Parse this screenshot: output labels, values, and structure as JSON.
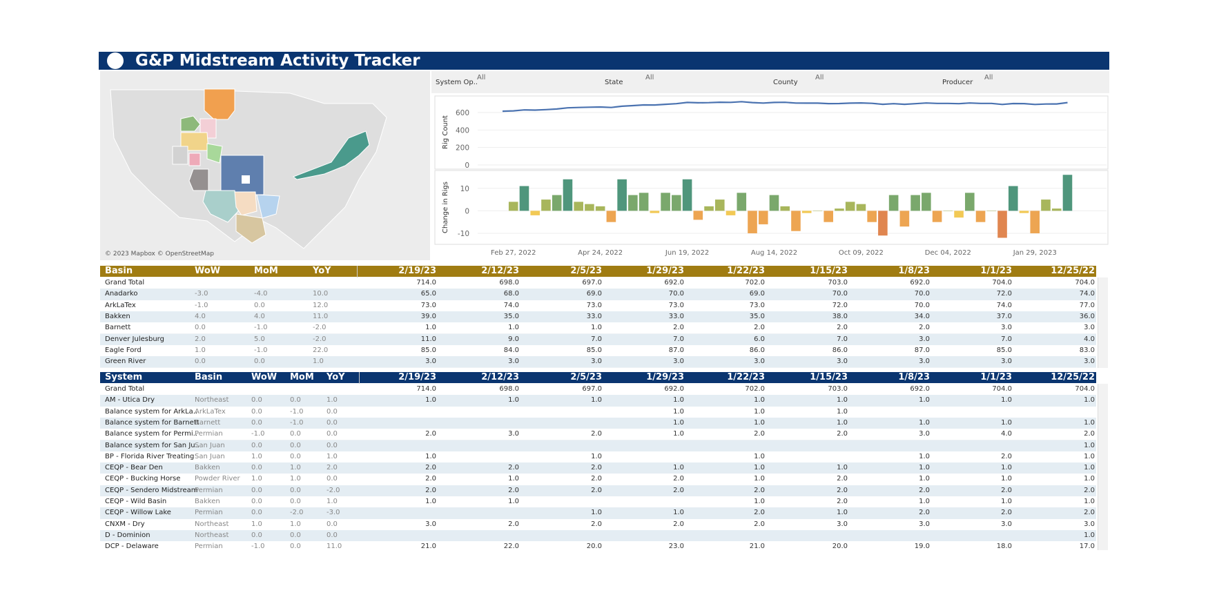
{
  "header": {
    "title": "G&P Midstream Activity Tracker"
  },
  "map": {
    "attribution": "© 2023 Mapbox © OpenStreetMap"
  },
  "filters": [
    {
      "label": "System Op..",
      "value": "All"
    },
    {
      "label": "State",
      "value": "All"
    },
    {
      "label": "County",
      "value": "All"
    },
    {
      "label": "Producer",
      "value": "All"
    }
  ],
  "chart_data": [
    {
      "type": "line",
      "y_label": "Rig Count",
      "color": "#4a72b0",
      "values": [
        615,
        619,
        630,
        628,
        633,
        640,
        654,
        658,
        661,
        663,
        658,
        672,
        679,
        687,
        686,
        694,
        701,
        715,
        711,
        713,
        718,
        716,
        724,
        714,
        708,
        715,
        717,
        708,
        707,
        707,
        702,
        703,
        707,
        710,
        705,
        694,
        701,
        694,
        701,
        709,
        704,
        704,
        701,
        709,
        704,
        704,
        692,
        703,
        702,
        692,
        697,
        698,
        714
      ],
      "ylim": [
        0,
        750
      ],
      "yticks": [
        0,
        200,
        400,
        600
      ],
      "grid": true
    },
    {
      "type": "bar",
      "y_label": "Change in Rigs",
      "categories": [
        null,
        "Feb 27, 2022",
        null,
        null,
        null,
        null,
        null,
        null,
        null,
        "Apr 24, 2022",
        null,
        null,
        null,
        null,
        null,
        null,
        null,
        "Jun 19, 2022",
        null,
        null,
        null,
        null,
        null,
        null,
        null,
        "Aug 14, 2022",
        null,
        null,
        null,
        null,
        null,
        null,
        null,
        "Oct 09, 2022",
        null,
        null,
        null,
        null,
        null,
        null,
        null,
        "Dec 04, 2022",
        null,
        null,
        null,
        null,
        null,
        null,
        null,
        "Jan 29, 2023",
        null,
        null,
        null
      ],
      "values": [
        null,
        4,
        11,
        -2,
        5,
        7,
        14,
        4,
        3,
        2,
        -5,
        14,
        7,
        8,
        -1,
        8,
        7,
        14,
        -4,
        2,
        5,
        -2,
        8,
        -10,
        -6,
        7,
        2,
        -9,
        -1,
        0,
        -5,
        1,
        4,
        3,
        -5,
        -11,
        7,
        -7,
        7,
        8,
        -5,
        0,
        -3,
        8,
        -5,
        0,
        -12,
        11,
        -1,
        -10,
        5,
        1,
        16
      ],
      "color_scale": {
        "thresholds": [
          -10,
          -3,
          0,
          6,
          10
        ],
        "colors": [
          "#e08650",
          "#eda552",
          "#f2c955",
          "#a8b65c",
          "#7aa86c",
          "#4f967c"
        ]
      },
      "ylim": [
        -14,
        17
      ],
      "yticks": [
        -10,
        0,
        10
      ],
      "grid": true
    }
  ],
  "basin_table": {
    "columns": [
      "Basin",
      "WoW",
      "MoM",
      "YoY",
      "2/19/23",
      "2/12/23",
      "2/5/23",
      "1/29/23",
      "1/22/23",
      "1/15/23",
      "1/8/23",
      "1/1/23",
      "12/25/22"
    ],
    "rows": [
      [
        "Grand Total",
        null,
        null,
        null,
        "714.0",
        "698.0",
        "697.0",
        "692.0",
        "702.0",
        "703.0",
        "692.0",
        "704.0",
        "704.0"
      ],
      [
        "Anadarko",
        "-3.0",
        "-4.0",
        "10.0",
        "65.0",
        "68.0",
        "69.0",
        "70.0",
        "69.0",
        "70.0",
        "70.0",
        "72.0",
        "74.0"
      ],
      [
        "ArkLaTex",
        "-1.0",
        "0.0",
        "12.0",
        "73.0",
        "74.0",
        "73.0",
        "73.0",
        "73.0",
        "72.0",
        "70.0",
        "74.0",
        "77.0"
      ],
      [
        "Bakken",
        "4.0",
        "4.0",
        "11.0",
        "39.0",
        "35.0",
        "33.0",
        "33.0",
        "35.0",
        "38.0",
        "34.0",
        "37.0",
        "36.0"
      ],
      [
        "Barnett",
        "0.0",
        "-1.0",
        "-2.0",
        "1.0",
        "1.0",
        "1.0",
        "2.0",
        "2.0",
        "2.0",
        "2.0",
        "3.0",
        "3.0"
      ],
      [
        "Denver Julesburg",
        "2.0",
        "5.0",
        "-2.0",
        "11.0",
        "9.0",
        "7.0",
        "7.0",
        "6.0",
        "7.0",
        "3.0",
        "7.0",
        "4.0"
      ],
      [
        "Eagle Ford",
        "1.0",
        "-1.0",
        "22.0",
        "85.0",
        "84.0",
        "85.0",
        "87.0",
        "86.0",
        "86.0",
        "87.0",
        "85.0",
        "83.0"
      ],
      [
        "Green River",
        "0.0",
        "0.0",
        "1.0",
        "3.0",
        "3.0",
        "3.0",
        "3.0",
        "3.0",
        "3.0",
        "3.0",
        "3.0",
        "3.0"
      ]
    ]
  },
  "system_table": {
    "columns": [
      "System",
      "Basin",
      "WoW",
      "MoM",
      "YoY",
      "2/19/23",
      "2/12/23",
      "2/5/23",
      "1/29/23",
      "1/22/23",
      "1/15/23",
      "1/8/23",
      "1/1/23",
      "12/25/22"
    ],
    "rows": [
      [
        "Grand Total",
        null,
        null,
        null,
        null,
        "714.0",
        "698.0",
        "697.0",
        "692.0",
        "702.0",
        "703.0",
        "692.0",
        "704.0",
        "704.0"
      ],
      [
        "AM - Utica Dry",
        "Northeast",
        "0.0",
        "0.0",
        "1.0",
        "1.0",
        "1.0",
        "1.0",
        "1.0",
        "1.0",
        "1.0",
        "1.0",
        "1.0",
        "1.0"
      ],
      [
        "Balance system for ArkLa..",
        "ArkLaTex",
        "0.0",
        "-1.0",
        "0.0",
        null,
        null,
        null,
        "1.0",
        "1.0",
        "1.0",
        null,
        null,
        null
      ],
      [
        "Balance system for Barnett",
        "Barnett",
        "0.0",
        "-1.0",
        "0.0",
        null,
        null,
        null,
        "1.0",
        "1.0",
        "1.0",
        "1.0",
        "1.0",
        "1.0"
      ],
      [
        "Balance system for Permi..",
        "Permian",
        "-1.0",
        "0.0",
        "0.0",
        "2.0",
        "3.0",
        "2.0",
        "1.0",
        "2.0",
        "2.0",
        "3.0",
        "4.0",
        "2.0"
      ],
      [
        "Balance system for San Ju..",
        "San Juan",
        "0.0",
        "0.0",
        "0.0",
        null,
        null,
        null,
        null,
        null,
        null,
        null,
        null,
        "1.0"
      ],
      [
        "BP - Florida River Treating",
        "San Juan",
        "1.0",
        "0.0",
        "1.0",
        "1.0",
        null,
        "1.0",
        null,
        "1.0",
        null,
        "1.0",
        "2.0",
        "1.0"
      ],
      [
        "CEQP - Bear Den",
        "Bakken",
        "0.0",
        "1.0",
        "2.0",
        "2.0",
        "2.0",
        "2.0",
        "1.0",
        "1.0",
        "1.0",
        "1.0",
        "1.0",
        "1.0"
      ],
      [
        "CEQP - Bucking Horse",
        "Powder River",
        "1.0",
        "1.0",
        "0.0",
        "2.0",
        "1.0",
        "2.0",
        "2.0",
        "1.0",
        "2.0",
        "1.0",
        "1.0",
        "1.0"
      ],
      [
        "CEQP - Sendero Midstream",
        "Permian",
        "0.0",
        "0.0",
        "-2.0",
        "2.0",
        "2.0",
        "2.0",
        "2.0",
        "2.0",
        "2.0",
        "2.0",
        "2.0",
        "2.0"
      ],
      [
        "CEQP - Wild Basin",
        "Bakken",
        "0.0",
        "0.0",
        "1.0",
        "1.0",
        "1.0",
        null,
        null,
        "1.0",
        "2.0",
        "1.0",
        "1.0",
        "1.0"
      ],
      [
        "CEQP - Willow Lake",
        "Permian",
        "0.0",
        "-2.0",
        "-3.0",
        null,
        null,
        "1.0",
        "1.0",
        "2.0",
        "1.0",
        "2.0",
        "2.0",
        "2.0"
      ],
      [
        "CNXM - Dry",
        "Northeast",
        "1.0",
        "1.0",
        "0.0",
        "3.0",
        "2.0",
        "2.0",
        "2.0",
        "2.0",
        "3.0",
        "3.0",
        "3.0",
        "3.0"
      ],
      [
        "D - Dominion",
        "Northeast",
        "0.0",
        "0.0",
        "0.0",
        null,
        null,
        null,
        null,
        null,
        null,
        null,
        null,
        "1.0"
      ],
      [
        "DCP - Delaware",
        "Permian",
        "-1.0",
        "0.0",
        "11.0",
        "21.0",
        "22.0",
        "20.0",
        "23.0",
        "21.0",
        "20.0",
        "19.0",
        "18.0",
        "17.0"
      ]
    ]
  }
}
